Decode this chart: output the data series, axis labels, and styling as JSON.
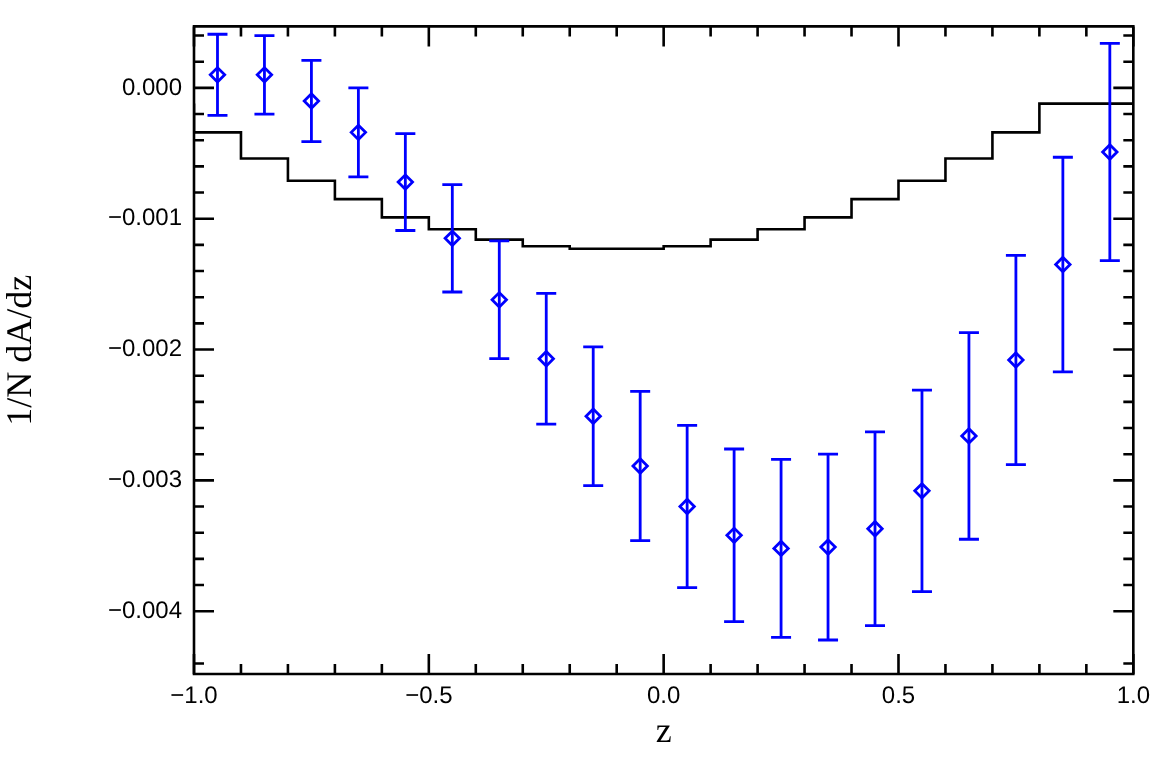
{
  "chart_data": {
    "type": "scatter",
    "xlabel": "z",
    "ylabel": "1/N dA/dz",
    "legend": false,
    "grid": false,
    "xlim": [
      -1.0,
      1.0
    ],
    "xticks": [
      {
        "value": -1.0,
        "label": "−1.0"
      },
      {
        "value": -0.9,
        "label": null
      },
      {
        "value": -0.8,
        "label": null
      },
      {
        "value": -0.7,
        "label": null
      },
      {
        "value": -0.6,
        "label": null
      },
      {
        "value": -0.5,
        "label": "−0.5"
      },
      {
        "value": -0.4,
        "label": null
      },
      {
        "value": -0.3,
        "label": null
      },
      {
        "value": -0.2,
        "label": null
      },
      {
        "value": -0.1,
        "label": null
      },
      {
        "value": 0.0,
        "label": "0.0"
      },
      {
        "value": 0.1,
        "label": null
      },
      {
        "value": 0.2,
        "label": null
      },
      {
        "value": 0.3,
        "label": null
      },
      {
        "value": 0.4,
        "label": null
      },
      {
        "value": 0.5,
        "label": "0.5"
      },
      {
        "value": 0.6,
        "label": null
      },
      {
        "value": 0.7,
        "label": null
      },
      {
        "value": 0.8,
        "label": null
      },
      {
        "value": 0.9,
        "label": null
      },
      {
        "value": 1.0,
        "label": "1.0"
      }
    ],
    "ylim": [
      -0.00448,
      0.00047
    ],
    "yticks": [
      {
        "value": -0.0044,
        "label": null
      },
      {
        "value": -0.004,
        "label": "−0.004"
      },
      {
        "value": -0.0038,
        "label": null
      },
      {
        "value": -0.0036,
        "label": null
      },
      {
        "value": -0.0034,
        "label": null
      },
      {
        "value": -0.0032,
        "label": null
      },
      {
        "value": -0.003,
        "label": "−0.003"
      },
      {
        "value": -0.0028,
        "label": null
      },
      {
        "value": -0.0026,
        "label": null
      },
      {
        "value": -0.0024,
        "label": null
      },
      {
        "value": -0.0022,
        "label": null
      },
      {
        "value": -0.002,
        "label": "−0.002"
      },
      {
        "value": -0.0018,
        "label": null
      },
      {
        "value": -0.0016,
        "label": null
      },
      {
        "value": -0.0014,
        "label": null
      },
      {
        "value": -0.0012,
        "label": null
      },
      {
        "value": -0.001,
        "label": "−0.001"
      },
      {
        "value": -0.0008,
        "label": null
      },
      {
        "value": -0.0006,
        "label": null
      },
      {
        "value": -0.0004,
        "label": null
      },
      {
        "value": -0.0002,
        "label": null
      },
      {
        "value": 0.0,
        "label": "0.000"
      },
      {
        "value": 0.0002,
        "label": null
      },
      {
        "value": 0.0004,
        "label": null
      }
    ],
    "series": [
      {
        "type": "step",
        "color": "#000000",
        "x": [
          -1.0,
          -0.9,
          -0.8,
          -0.7,
          -0.6,
          -0.5,
          -0.4,
          -0.3,
          -0.2,
          -0.1,
          0.0,
          0.1,
          0.2,
          0.3,
          0.4,
          0.5,
          0.6,
          0.7,
          0.8,
          0.9,
          1.0
        ],
        "values": [
          -0.00012,
          -0.00034,
          -0.00054,
          -0.00071,
          -0.00085,
          -0.00099,
          -0.00108,
          -0.00116,
          -0.00121,
          -0.00123,
          -0.00123,
          -0.00121,
          -0.00116,
          -0.00108,
          -0.00099,
          -0.00085,
          -0.00071,
          -0.00054,
          -0.00034,
          -0.00012,
          -0.00012
        ]
      },
      {
        "type": "scatter",
        "marker": "diamond",
        "color": "#0000ff",
        "x": [
          -0.95,
          -0.85,
          -0.75,
          -0.65,
          -0.55,
          -0.45,
          -0.35,
          -0.25,
          -0.15,
          -0.05,
          0.05,
          0.15,
          0.25,
          0.35,
          0.45,
          0.55,
          0.65,
          0.75,
          0.85,
          0.95
        ],
        "values": [
          0.0001,
          0.0001,
          -0.0001,
          -0.00034,
          -0.00072,
          -0.00115,
          -0.00162,
          -0.00207,
          -0.00251,
          -0.00289,
          -0.0032,
          -0.00342,
          -0.00352,
          -0.00351,
          -0.00337,
          -0.00308,
          -0.00266,
          -0.00208,
          -0.00135,
          -0.00049
        ],
        "errors": [
          0.00031,
          0.0003,
          0.00031,
          0.00034,
          0.00037,
          0.00041,
          0.00045,
          0.0005,
          0.00053,
          0.00057,
          0.00062,
          0.00066,
          0.00068,
          0.00071,
          0.00074,
          0.00077,
          0.00079,
          0.0008,
          0.00082,
          0.00083
        ]
      }
    ]
  }
}
